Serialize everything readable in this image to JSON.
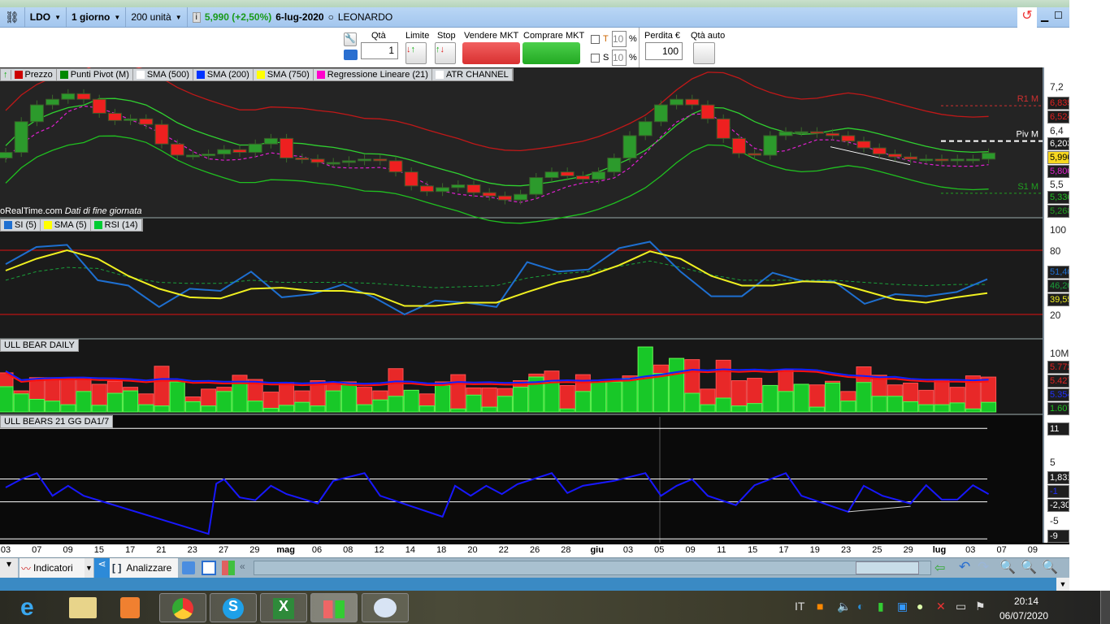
{
  "titlebar": {
    "symbol": "LDO",
    "period": "1 giorno",
    "units": "200 unità",
    "price_change": "5,990 (+2,50%)",
    "date": "6-lug-2020",
    "name": "LEONARDO"
  },
  "toolbar": {
    "qty_label": "Qtà",
    "qty_value": "1",
    "limit_label": "Limite",
    "stop_label": "Stop",
    "sell_label": "Vendere MKT",
    "buy_label": "Comprare MKT",
    "t_label": "T",
    "t_value": "10",
    "s_label": "S",
    "s_value": "10",
    "pct": "%",
    "loss_label": "Perdita €",
    "loss_value": "100",
    "auto_qty_label": "Qtà auto"
  },
  "legend": {
    "items": [
      {
        "label": "Prezzo",
        "color": "#cc0000"
      },
      {
        "label": "Punti Pivot (M)",
        "color": "#008800"
      },
      {
        "label": "SMA (500)",
        "color": "#ffffff"
      },
      {
        "label": "SMA (200)",
        "color": "#0033ff"
      },
      {
        "label": "SMA (750)",
        "color": "#ffff00"
      },
      {
        "label": "Regressione Lineare (21)",
        "color": "#ff00cc"
      },
      {
        "label": "ATR CHANNEL",
        "color": "#ffffff"
      }
    ],
    "watermark": "oRealTime.com",
    "watermark_note": "Dati di fine giornata",
    "rsi_items": [
      {
        "label": "SI (5)",
        "color": "#1e6fd0"
      },
      {
        "label": "SMA (5)",
        "color": "#ffff00"
      },
      {
        "label": "RSI (14)",
        "color": "#00cc33"
      }
    ],
    "volume_title": "ULL BEAR DAILY",
    "bb_title": "ULL BEARS 21 GG DA1/7"
  },
  "chart_data": [
    {
      "type": "candlestick",
      "ylim": [
        5.05,
        7.45
      ],
      "y_ticks": [
        "7,2",
        "6,4",
        "5,5"
      ],
      "closes": [
        6.0,
        6.55,
        6.85,
        6.95,
        7.05,
        6.95,
        6.7,
        6.57,
        6.6,
        6.5,
        6.15,
        5.95,
        5.95,
        5.97,
        6.05,
        6.0,
        6.15,
        6.25,
        5.9,
        5.88,
        5.82,
        5.82,
        5.85,
        5.88,
        5.85,
        5.65,
        5.4,
        5.3,
        5.37,
        5.42,
        5.28,
        5.22,
        5.15,
        5.25,
        5.55,
        5.65,
        5.58,
        5.52,
        5.65,
        5.9,
        6.3,
        6.55,
        6.85,
        6.95,
        6.85,
        6.6,
        6.25,
        5.98,
        5.95,
        6.3,
        6.37,
        6.37,
        6.34,
        6.3,
        6.2,
        6.08,
        5.97,
        5.92,
        5.88,
        5.88,
        5.85,
        5.88,
        5.88,
        5.99
      ],
      "pivots": {
        "R1 M": "6,835",
        "Piv M": "6,203",
        "S1 M": "5,268"
      },
      "tags": {
        "r1": "6,835",
        "atr_upper": "6,524",
        "pivot": "6,203",
        "last": "5,990",
        "regression": "5,800",
        "atr_lower": "5,336",
        "s1": "5,268"
      }
    },
    {
      "type": "line",
      "ylim": [
        0,
        100
      ],
      "y_ticks": [
        "100",
        "80",
        "20"
      ],
      "levels": [
        80,
        20
      ],
      "series": [
        {
          "name": "SI (5)",
          "values": [
            67,
            83,
            85,
            52,
            47,
            27,
            44,
            42,
            60,
            36,
            39,
            48,
            36,
            20,
            33,
            31,
            27,
            69,
            60,
            62,
            82,
            88,
            60,
            37,
            37,
            59,
            51,
            51,
            30,
            39,
            37,
            41,
            53
          ]
        },
        {
          "name": "SMA (5)",
          "values": [
            61,
            72,
            80,
            72,
            56,
            44,
            36,
            35,
            44,
            45,
            42,
            42,
            39,
            28,
            28,
            31,
            31,
            41,
            50,
            56,
            66,
            79,
            72,
            56,
            47,
            47,
            51,
            50,
            42,
            34,
            31,
            36,
            40
          ]
        },
        {
          "name": "RSI (14)",
          "values": [
            52,
            60,
            64,
            63,
            55,
            50,
            49,
            49,
            52,
            50,
            50,
            50,
            49,
            47,
            45,
            46,
            47,
            54,
            58,
            60,
            65,
            70,
            64,
            57,
            52,
            52,
            52,
            52,
            50,
            48,
            47,
            48,
            48
          ]
        }
      ],
      "tags": [
        "51,40",
        "46,20",
        "39,55"
      ]
    },
    {
      "type": "bar",
      "y_ticks": [
        "10M"
      ],
      "unit": "M",
      "total": [
        6.5,
        3.5,
        5.7,
        5.7,
        5.7,
        5.5,
        4.6,
        5.1,
        4.1,
        3.0,
        7.6,
        5.0,
        2.5,
        3.8,
        4.1,
        6.1,
        5.4,
        3.3,
        4.9,
        3.5,
        5.2,
        5.0,
        5.0,
        4.1,
        3.5,
        7.2,
        3.6,
        3.0,
        5.0,
        6.2,
        4.0,
        4.0,
        3.9,
        5.2,
        6.3,
        6.8,
        4.4,
        6.2,
        4.6,
        5.0,
        6.0,
        10.8,
        7.8,
        8.9,
        8.7,
        3.8,
        8.6,
        5.2,
        5.6,
        4.4,
        6.9,
        4.6,
        4.5,
        5.1,
        3.4,
        7.5,
        6.1,
        4.5,
        4.8,
        3.6,
        5.3,
        4.1,
        6.0,
        5.8
      ],
      "green": [
        4.2,
        3.0,
        2.1,
        1.8,
        1.2,
        3.4,
        1.1,
        3.1,
        3.5,
        1.2,
        1.0,
        5.0,
        1.7,
        1.0,
        3.4,
        5.1,
        1.8,
        0.6,
        1.1,
        1.6,
        1.0,
        3.5,
        4.7,
        1.2,
        2.0,
        2.6,
        3.6,
        1.0,
        4.4,
        0.5,
        2.8,
        0.8,
        2.6,
        4.1,
        5.8,
        5.0,
        0.5,
        3.4,
        5.0,
        5.0,
        5.6,
        10.8,
        6.4,
        8.9,
        3.1,
        1.2,
        2.3,
        1.0,
        1.4,
        4.4,
        3.4,
        4.6,
        0.8,
        4.8,
        1.8,
        4.9,
        2.6,
        2.6,
        1.7,
        1.2,
        1.2,
        1.5,
        0.5,
        1.6
      ],
      "tags": [
        "5.772",
        "5.427",
        "5.354",
        "1.607"
      ]
    },
    {
      "type": "line",
      "ylim": [
        -9,
        11
      ],
      "y_ticks": [
        "5",
        "-5"
      ],
      "levels": [
        11,
        1.831,
        -2.3,
        -9
      ],
      "points": [
        [
          0,
          0.3
        ],
        [
          1,
          1.8
        ],
        [
          2,
          2.9
        ],
        [
          3,
          -1.2
        ],
        [
          4,
          0.6
        ],
        [
          5,
          -1.2
        ],
        [
          13,
          -8.1
        ],
        [
          13.5,
          1.0
        ],
        [
          14,
          1.8
        ],
        [
          15,
          -1.5
        ],
        [
          16,
          -2
        ],
        [
          17,
          0.6
        ],
        [
          18,
          -0.9
        ],
        [
          20,
          -2.6
        ],
        [
          21,
          1.5
        ],
        [
          23,
          2.9
        ],
        [
          24,
          -1.2
        ],
        [
          28,
          -5
        ],
        [
          28.8,
          0.6
        ],
        [
          29.8,
          -1.2
        ],
        [
          30.8,
          0.6
        ],
        [
          31.8,
          -0.9
        ],
        [
          32.8,
          0.9
        ],
        [
          35,
          2.9
        ],
        [
          36,
          -0.7
        ],
        [
          37,
          0.6
        ],
        [
          39,
          1.5
        ],
        [
          41,
          2.9
        ],
        [
          42,
          -1.2
        ],
        [
          43,
          0.6
        ],
        [
          44,
          1.8
        ],
        [
          45,
          -1.2
        ],
        [
          46.8,
          -2.9
        ],
        [
          48,
          0.7
        ],
        [
          50,
          2.9
        ],
        [
          51,
          -1.2
        ],
        [
          54,
          -4.1
        ],
        [
          55,
          0.6
        ],
        [
          56.2,
          -1.2
        ],
        [
          58,
          -2.6
        ],
        [
          59,
          0.7
        ],
        [
          60,
          -1.9
        ],
        [
          61,
          -1.9
        ],
        [
          62,
          0.7
        ],
        [
          63,
          -0.9
        ]
      ],
      "tags": [
        "11",
        "1,831",
        "-1",
        "-2,30",
        "-9"
      ]
    }
  ],
  "x_axis": [
    "03",
    "07",
    "09",
    "15",
    "17",
    "21",
    "23",
    "27",
    "29",
    "mag",
    "06",
    "08",
    "12",
    "14",
    "18",
    "20",
    "22",
    "26",
    "28",
    "giu",
    "03",
    "05",
    "09",
    "11",
    "15",
    "17",
    "19",
    "23",
    "25",
    "29",
    "lug",
    "03",
    "07",
    "09"
  ],
  "bottombar": {
    "indicators_label": "Indicatori",
    "analyze_label": "Analizzare"
  },
  "taskbar": {
    "lang": "IT",
    "time": "20:14",
    "date": "06/07/2020"
  }
}
